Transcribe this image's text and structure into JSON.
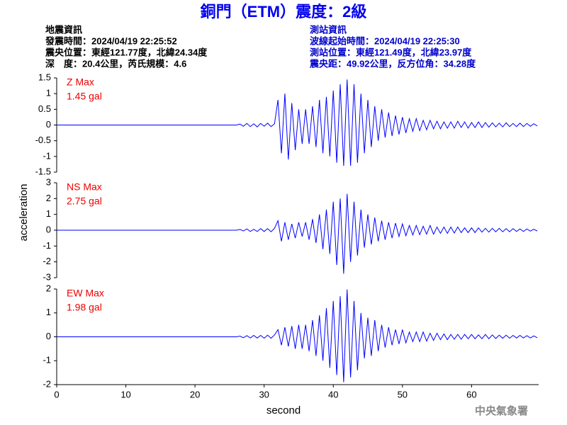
{
  "title": "銅門（ETM）震度：2級",
  "left_info": [
    "地震資訊",
    "發震時間：2024/04/19 22:25:52",
    "震央位置：東經121.77度，北緯24.34度",
    "深　度：20.4公里，芮氏規模：4.6"
  ],
  "right_info": [
    "測站資訊",
    "波線起始時間：2024/04/19 22:25:30",
    "測站位置：東經121.49度，北緯23.97度",
    "震央距：49.92公里，反方位角：34.28度"
  ],
  "ylabel": "acceleration",
  "footer": "中央氣象署",
  "chart_data": [
    {
      "type": "line",
      "xlim": [
        0,
        69.7
      ],
      "ylim": [
        -1.5,
        1.5
      ],
      "yticks": [
        -1.5,
        -1,
        -0.5,
        0,
        0.5,
        1,
        1.5
      ],
      "x": [
        0,
        26,
        26.5,
        27,
        27.5,
        28,
        28.5,
        29,
        29.5,
        30,
        30.5,
        31,
        31.5,
        32,
        32.5,
        33,
        33.5,
        34,
        34.5,
        35,
        35.5,
        36,
        36.5,
        37,
        37.5,
        38,
        38.5,
        39,
        39.5,
        40,
        40.5,
        41,
        41.5,
        42,
        42.5,
        43,
        43.5,
        44,
        44.5,
        45,
        45.5,
        46,
        46.5,
        47,
        47.5,
        48,
        48.5,
        49,
        49.5,
        50,
        50.5,
        51,
        51.5,
        52,
        52.5,
        53,
        53.5,
        54,
        54.5,
        55,
        55.5,
        56,
        56.5,
        57,
        57.5,
        58,
        58.5,
        59,
        59.5,
        60,
        60.5,
        61,
        61.5,
        62,
        62.5,
        63,
        63.5,
        64,
        64.5,
        65,
        65.5,
        66,
        66.5,
        67,
        67.5,
        68,
        68.5,
        69,
        69.5
      ],
      "series": [
        {
          "name": "Z Max",
          "color": "#0000ff",
          "values": [
            0,
            0,
            0.03,
            -0.04,
            0.05,
            -0.05,
            0.04,
            -0.06,
            0.05,
            -0.04,
            0.06,
            -0.05,
            0.04,
            0.8,
            -0.9,
            1.0,
            -1.1,
            0.7,
            -0.8,
            0.5,
            -0.6,
            0.5,
            -0.6,
            0.6,
            -0.7,
            0.8,
            -0.9,
            0.9,
            -1.0,
            1.1,
            -1.2,
            1.3,
            -1.3,
            1.45,
            -1.3,
            1.3,
            -1.2,
            1.0,
            -0.9,
            0.8,
            -0.7,
            0.6,
            -0.5,
            0.5,
            -0.4,
            0.4,
            -0.35,
            0.3,
            -0.3,
            0.25,
            -0.25,
            0.2,
            -0.2,
            0.2,
            -0.18,
            0.15,
            -0.15,
            0.15,
            -0.12,
            0.12,
            -0.12,
            0.1,
            -0.1,
            0.1,
            -0.1,
            0.12,
            -0.08,
            0.1,
            -0.1,
            0.08,
            -0.08,
            0.1,
            -0.08,
            0.08,
            -0.07,
            0.07,
            -0.06,
            0.06,
            -0.06,
            0.07,
            -0.05,
            0.05,
            -0.05,
            0.06,
            -0.05,
            0.05,
            -0.04,
            0.04,
            -0.03
          ]
        }
      ],
      "annotation": "1.45 gal"
    },
    {
      "type": "line",
      "xlim": [
        0,
        69.7
      ],
      "ylim": [
        -3,
        3
      ],
      "yticks": [
        -3,
        -2,
        -1,
        0,
        1,
        2,
        3
      ],
      "x": [
        0,
        26,
        26.5,
        27,
        27.5,
        28,
        28.5,
        29,
        29.5,
        30,
        30.5,
        31,
        31.5,
        32,
        32.5,
        33,
        33.5,
        34,
        34.5,
        35,
        35.5,
        36,
        36.5,
        37,
        37.5,
        38,
        38.5,
        39,
        39.5,
        40,
        40.5,
        41,
        41.5,
        42,
        42.5,
        43,
        43.5,
        44,
        44.5,
        45,
        45.5,
        46,
        46.5,
        47,
        47.5,
        48,
        48.5,
        49,
        49.5,
        50,
        50.5,
        51,
        51.5,
        52,
        52.5,
        53,
        53.5,
        54,
        54.5,
        55,
        55.5,
        56,
        56.5,
        57,
        57.5,
        58,
        58.5,
        59,
        59.5,
        60,
        60.5,
        61,
        61.5,
        62,
        62.5,
        63,
        63.5,
        64,
        64.5,
        65,
        65.5,
        66,
        66.5,
        67,
        67.5,
        68,
        68.5,
        69,
        69.5
      ],
      "series": [
        {
          "name": "NS Max",
          "color": "#0000ff",
          "values": [
            0,
            0,
            0.05,
            -0.05,
            0.08,
            -0.08,
            0.06,
            -0.08,
            0.1,
            -0.08,
            0.1,
            -0.1,
            0.12,
            0.6,
            -0.7,
            0.5,
            -0.6,
            0.4,
            -0.5,
            0.5,
            -0.4,
            0.5,
            -0.6,
            0.7,
            -0.8,
            1.0,
            -1.2,
            1.3,
            -1.5,
            1.8,
            -2.2,
            2.0,
            -2.75,
            2.3,
            -2.0,
            1.8,
            -1.6,
            1.3,
            -1.1,
            1.0,
            -0.9,
            0.8,
            -0.7,
            0.6,
            -0.6,
            0.5,
            -0.5,
            0.45,
            -0.4,
            0.4,
            -0.35,
            0.3,
            -0.3,
            0.3,
            -0.28,
            0.25,
            -0.25,
            0.3,
            -0.25,
            0.2,
            -0.2,
            0.2,
            -0.2,
            0.2,
            -0.18,
            0.2,
            -0.15,
            0.15,
            -0.15,
            0.15,
            -0.15,
            0.15,
            -0.12,
            0.12,
            -0.12,
            0.12,
            -0.1,
            0.12,
            -0.1,
            0.1,
            -0.1,
            0.1,
            -0.08,
            0.08,
            -0.08,
            0.08,
            -0.06,
            0.06,
            -0.05
          ]
        }
      ],
      "annotation": "2.75 gal"
    },
    {
      "type": "line",
      "xlim": [
        0,
        69.7
      ],
      "ylim": [
        -2,
        2
      ],
      "yticks": [
        -2,
        -1,
        0,
        1,
        2
      ],
      "xticks": [
        0,
        10,
        20,
        30,
        40,
        50,
        60
      ],
      "xlabel": "second",
      "x": [
        0,
        26,
        26.5,
        27,
        27.5,
        28,
        28.5,
        29,
        29.5,
        30,
        30.5,
        31,
        31.5,
        32,
        32.5,
        33,
        33.5,
        34,
        34.5,
        35,
        35.5,
        36,
        36.5,
        37,
        37.5,
        38,
        38.5,
        39,
        39.5,
        40,
        40.5,
        41,
        41.5,
        42,
        42.5,
        43,
        43.5,
        44,
        44.5,
        45,
        45.5,
        46,
        46.5,
        47,
        47.5,
        48,
        48.5,
        49,
        49.5,
        50,
        50.5,
        51,
        51.5,
        52,
        52.5,
        53,
        53.5,
        54,
        54.5,
        55,
        55.5,
        56,
        56.5,
        57,
        57.5,
        58,
        58.5,
        59,
        59.5,
        60,
        60.5,
        61,
        61.5,
        62,
        62.5,
        63,
        63.5,
        64,
        64.5,
        65,
        65.5,
        66,
        66.5,
        67,
        67.5,
        68,
        68.5,
        69,
        69.5
      ],
      "series": [
        {
          "name": "EW Max",
          "color": "#0000ff",
          "values": [
            0,
            0,
            0.03,
            -0.04,
            0.05,
            -0.05,
            0.06,
            -0.05,
            0.06,
            -0.06,
            0.07,
            -0.06,
            0.08,
            0.3,
            -0.35,
            0.4,
            -0.4,
            0.45,
            -0.5,
            0.5,
            -0.5,
            0.5,
            -0.6,
            0.7,
            -0.8,
            0.9,
            -1.0,
            1.2,
            -1.3,
            1.5,
            -1.6,
            1.7,
            -1.9,
            1.98,
            -1.7,
            1.5,
            -1.4,
            1.0,
            -0.9,
            0.8,
            -0.8,
            0.7,
            -0.6,
            0.5,
            -0.45,
            0.4,
            -0.35,
            0.3,
            -0.3,
            0.3,
            -0.25,
            0.2,
            -0.2,
            0.2,
            -0.2,
            0.2,
            -0.18,
            0.15,
            -0.15,
            0.15,
            -0.12,
            0.12,
            -0.12,
            0.1,
            -0.1,
            0.1,
            -0.1,
            0.1,
            -0.08,
            0.1,
            -0.08,
            0.08,
            -0.08,
            0.1,
            -0.08,
            0.08,
            -0.07,
            0.07,
            -0.06,
            0.07,
            -0.06,
            0.06,
            -0.05,
            0.06,
            -0.05,
            0.05,
            -0.05,
            0.04,
            -0.04
          ]
        }
      ],
      "annotation": "1.98 gal"
    }
  ]
}
